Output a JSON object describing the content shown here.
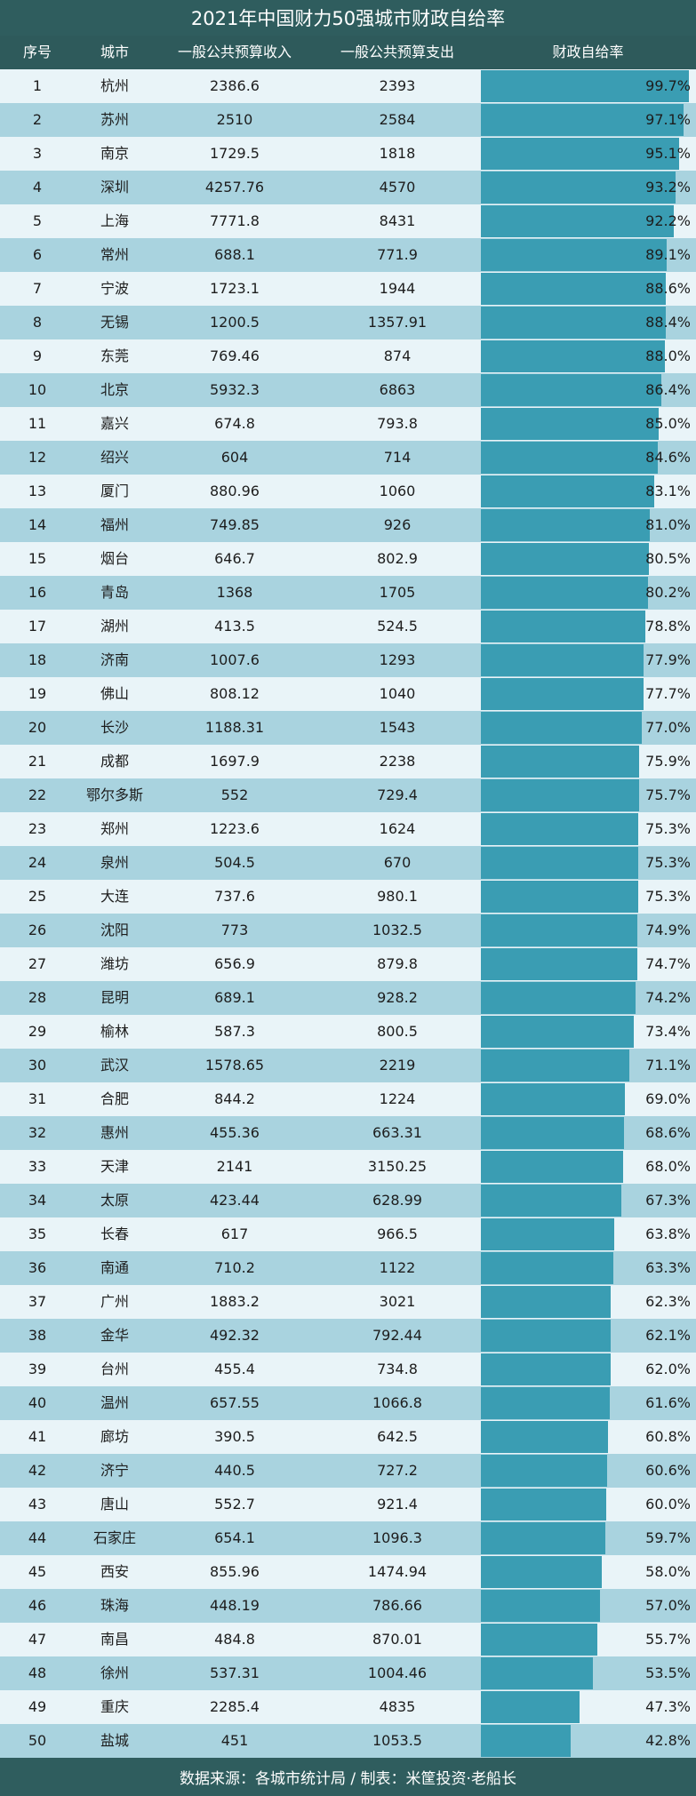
{
  "title": "2021年中国财力50强城市财政自给率",
  "headers": [
    "序号",
    "城市",
    "一般公共预算收入",
    "一般公共预算支出",
    "财政自给率"
  ],
  "footer": "数据来源：各城市统计局 / 制表：米筐投资·老船长",
  "colors": {
    "header_bg": "#2e5a5b",
    "bar": "#3a9db3",
    "row_light": "#e9f4f8",
    "row_dark": "#a9d3df"
  },
  "chart_data": {
    "type": "table",
    "columns": [
      "序号",
      "城市",
      "一般公共预算收入",
      "一般公共预算支出",
      "财政自给率"
    ],
    "rows": [
      {
        "rank": "1",
        "city": "杭州",
        "revenue": "2386.6",
        "expense": "2393",
        "ratio": "99.7%",
        "ratio_value": 99.7
      },
      {
        "rank": "2",
        "city": "苏州",
        "revenue": "2510",
        "expense": "2584",
        "ratio": "97.1%",
        "ratio_value": 97.1
      },
      {
        "rank": "3",
        "city": "南京",
        "revenue": "1729.5",
        "expense": "1818",
        "ratio": "95.1%",
        "ratio_value": 95.1
      },
      {
        "rank": "4",
        "city": "深圳",
        "revenue": "4257.76",
        "expense": "4570",
        "ratio": "93.2%",
        "ratio_value": 93.2
      },
      {
        "rank": "5",
        "city": "上海",
        "revenue": "7771.8",
        "expense": "8431",
        "ratio": "92.2%",
        "ratio_value": 92.2
      },
      {
        "rank": "6",
        "city": "常州",
        "revenue": "688.1",
        "expense": "771.9",
        "ratio": "89.1%",
        "ratio_value": 89.1
      },
      {
        "rank": "7",
        "city": "宁波",
        "revenue": "1723.1",
        "expense": "1944",
        "ratio": "88.6%",
        "ratio_value": 88.6
      },
      {
        "rank": "8",
        "city": "无锡",
        "revenue": "1200.5",
        "expense": "1357.91",
        "ratio": "88.4%",
        "ratio_value": 88.4
      },
      {
        "rank": "9",
        "city": "东莞",
        "revenue": "769.46",
        "expense": "874",
        "ratio": "88.0%",
        "ratio_value": 88.0
      },
      {
        "rank": "10",
        "city": "北京",
        "revenue": "5932.3",
        "expense": "6863",
        "ratio": "86.4%",
        "ratio_value": 86.4
      },
      {
        "rank": "11",
        "city": "嘉兴",
        "revenue": "674.8",
        "expense": "793.8",
        "ratio": "85.0%",
        "ratio_value": 85.0
      },
      {
        "rank": "12",
        "city": "绍兴",
        "revenue": "604",
        "expense": "714",
        "ratio": "84.6%",
        "ratio_value": 84.6
      },
      {
        "rank": "13",
        "city": "厦门",
        "revenue": "880.96",
        "expense": "1060",
        "ratio": "83.1%",
        "ratio_value": 83.1
      },
      {
        "rank": "14",
        "city": "福州",
        "revenue": "749.85",
        "expense": "926",
        "ratio": "81.0%",
        "ratio_value": 81.0
      },
      {
        "rank": "15",
        "city": "烟台",
        "revenue": "646.7",
        "expense": "802.9",
        "ratio": "80.5%",
        "ratio_value": 80.5
      },
      {
        "rank": "16",
        "city": "青岛",
        "revenue": "1368",
        "expense": "1705",
        "ratio": "80.2%",
        "ratio_value": 80.2
      },
      {
        "rank": "17",
        "city": "湖州",
        "revenue": "413.5",
        "expense": "524.5",
        "ratio": "78.8%",
        "ratio_value": 78.8
      },
      {
        "rank": "18",
        "city": "济南",
        "revenue": "1007.6",
        "expense": "1293",
        "ratio": "77.9%",
        "ratio_value": 77.9
      },
      {
        "rank": "19",
        "city": "佛山",
        "revenue": "808.12",
        "expense": "1040",
        "ratio": "77.7%",
        "ratio_value": 77.7
      },
      {
        "rank": "20",
        "city": "长沙",
        "revenue": "1188.31",
        "expense": "1543",
        "ratio": "77.0%",
        "ratio_value": 77.0
      },
      {
        "rank": "21",
        "city": "成都",
        "revenue": "1697.9",
        "expense": "2238",
        "ratio": "75.9%",
        "ratio_value": 75.9
      },
      {
        "rank": "22",
        "city": "鄂尔多斯",
        "revenue": "552",
        "expense": "729.4",
        "ratio": "75.7%",
        "ratio_value": 75.7
      },
      {
        "rank": "23",
        "city": "郑州",
        "revenue": "1223.6",
        "expense": "1624",
        "ratio": "75.3%",
        "ratio_value": 75.3
      },
      {
        "rank": "24",
        "city": "泉州",
        "revenue": "504.5",
        "expense": "670",
        "ratio": "75.3%",
        "ratio_value": 75.3
      },
      {
        "rank": "25",
        "city": "大连",
        "revenue": "737.6",
        "expense": "980.1",
        "ratio": "75.3%",
        "ratio_value": 75.3
      },
      {
        "rank": "26",
        "city": "沈阳",
        "revenue": "773",
        "expense": "1032.5",
        "ratio": "74.9%",
        "ratio_value": 74.9
      },
      {
        "rank": "27",
        "city": "潍坊",
        "revenue": "656.9",
        "expense": "879.8",
        "ratio": "74.7%",
        "ratio_value": 74.7
      },
      {
        "rank": "28",
        "city": "昆明",
        "revenue": "689.1",
        "expense": "928.2",
        "ratio": "74.2%",
        "ratio_value": 74.2
      },
      {
        "rank": "29",
        "city": "榆林",
        "revenue": "587.3",
        "expense": "800.5",
        "ratio": "73.4%",
        "ratio_value": 73.4
      },
      {
        "rank": "30",
        "city": "武汉",
        "revenue": "1578.65",
        "expense": "2219",
        "ratio": "71.1%",
        "ratio_value": 71.1
      },
      {
        "rank": "31",
        "city": "合肥",
        "revenue": "844.2",
        "expense": "1224",
        "ratio": "69.0%",
        "ratio_value": 69.0
      },
      {
        "rank": "32",
        "city": "惠州",
        "revenue": "455.36",
        "expense": "663.31",
        "ratio": "68.6%",
        "ratio_value": 68.6
      },
      {
        "rank": "33",
        "city": "天津",
        "revenue": "2141",
        "expense": "3150.25",
        "ratio": "68.0%",
        "ratio_value": 68.0
      },
      {
        "rank": "34",
        "city": "太原",
        "revenue": "423.44",
        "expense": "628.99",
        "ratio": "67.3%",
        "ratio_value": 67.3
      },
      {
        "rank": "35",
        "city": "长春",
        "revenue": "617",
        "expense": "966.5",
        "ratio": "63.8%",
        "ratio_value": 63.8
      },
      {
        "rank": "36",
        "city": "南通",
        "revenue": "710.2",
        "expense": "1122",
        "ratio": "63.3%",
        "ratio_value": 63.3
      },
      {
        "rank": "37",
        "city": "广州",
        "revenue": "1883.2",
        "expense": "3021",
        "ratio": "62.3%",
        "ratio_value": 62.3
      },
      {
        "rank": "38",
        "city": "金华",
        "revenue": "492.32",
        "expense": "792.44",
        "ratio": "62.1%",
        "ratio_value": 62.1
      },
      {
        "rank": "39",
        "city": "台州",
        "revenue": "455.4",
        "expense": "734.8",
        "ratio": "62.0%",
        "ratio_value": 62.0
      },
      {
        "rank": "40",
        "city": "温州",
        "revenue": "657.55",
        "expense": "1066.8",
        "ratio": "61.6%",
        "ratio_value": 61.6
      },
      {
        "rank": "41",
        "city": "廊坊",
        "revenue": "390.5",
        "expense": "642.5",
        "ratio": "60.8%",
        "ratio_value": 60.8
      },
      {
        "rank": "42",
        "city": "济宁",
        "revenue": "440.5",
        "expense": "727.2",
        "ratio": "60.6%",
        "ratio_value": 60.6
      },
      {
        "rank": "43",
        "city": "唐山",
        "revenue": "552.7",
        "expense": "921.4",
        "ratio": "60.0%",
        "ratio_value": 60.0
      },
      {
        "rank": "44",
        "city": "石家庄",
        "revenue": "654.1",
        "expense": "1096.3",
        "ratio": "59.7%",
        "ratio_value": 59.7
      },
      {
        "rank": "45",
        "city": "西安",
        "revenue": "855.96",
        "expense": "1474.94",
        "ratio": "58.0%",
        "ratio_value": 58.0
      },
      {
        "rank": "46",
        "city": "珠海",
        "revenue": "448.19",
        "expense": "786.66",
        "ratio": "57.0%",
        "ratio_value": 57.0
      },
      {
        "rank": "47",
        "city": "南昌",
        "revenue": "484.8",
        "expense": "870.01",
        "ratio": "55.7%",
        "ratio_value": 55.7
      },
      {
        "rank": "48",
        "city": "徐州",
        "revenue": "537.31",
        "expense": "1004.46",
        "ratio": "53.5%",
        "ratio_value": 53.5
      },
      {
        "rank": "49",
        "city": "重庆",
        "revenue": "2285.4",
        "expense": "4835",
        "ratio": "47.3%",
        "ratio_value": 47.3
      },
      {
        "rank": "50",
        "city": "盐城",
        "revenue": "451",
        "expense": "1053.5",
        "ratio": "42.8%",
        "ratio_value": 42.8
      }
    ],
    "bar_range": [
      0,
      100
    ]
  }
}
